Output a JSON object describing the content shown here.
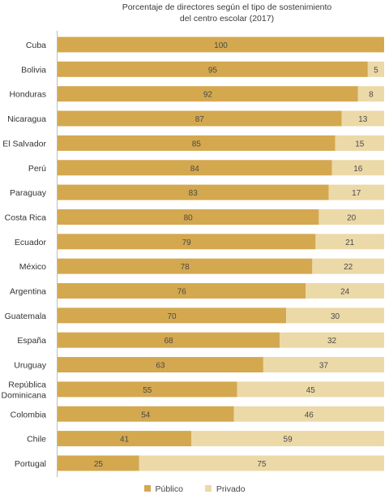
{
  "chart_data": {
    "type": "bar",
    "orientation": "horizontal",
    "stacked": true,
    "title_lines": [
      "Porcentaje de directores según el tipo de sostenimiento",
      "del centro escolar (2017)"
    ],
    "categories": [
      [
        "Cuba"
      ],
      [
        "Bolivia"
      ],
      [
        "Honduras"
      ],
      [
        "Nicaragua"
      ],
      [
        "El Salvador"
      ],
      [
        "Perú"
      ],
      [
        "Paraguay"
      ],
      [
        "Costa Rica"
      ],
      [
        "Ecuador"
      ],
      [
        "México"
      ],
      [
        "Argentina"
      ],
      [
        "Guatemala"
      ],
      [
        "España"
      ],
      [
        "Uruguay"
      ],
      [
        "República",
        "Dominicana"
      ],
      [
        "Colombia"
      ],
      [
        "Chile"
      ],
      [
        "Portugal"
      ]
    ],
    "series": [
      {
        "name": "Público",
        "color": "#d4a84f",
        "values": [
          100,
          95,
          92,
          87,
          85,
          84,
          83,
          80,
          79,
          78,
          76,
          70,
          68,
          63,
          55,
          54,
          41,
          25
        ]
      },
      {
        "name": "Privado",
        "color": "#ecd9a8",
        "values": [
          0,
          5,
          8,
          13,
          15,
          16,
          17,
          20,
          21,
          22,
          24,
          30,
          32,
          37,
          45,
          46,
          59,
          75
        ]
      }
    ],
    "xlim": [
      0,
      100
    ],
    "grid": false,
    "legend_position": "bottom"
  }
}
